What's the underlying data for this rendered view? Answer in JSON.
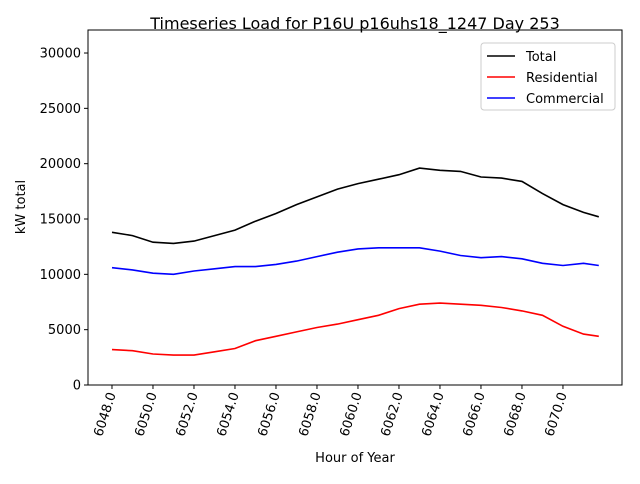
{
  "chart_data": {
    "type": "line",
    "title": "Timeseries Load for P16U p16uhs18_1247  Day 253",
    "xlabel": "Hour of Year",
    "ylabel": "kW total",
    "xlim": [
      6046.83,
      6072.88
    ],
    "ylim": [
      0,
      32080
    ],
    "xticks": [
      6048,
      6050,
      6052,
      6054,
      6056,
      6058,
      6060,
      6062,
      6064,
      6066,
      6068,
      6070
    ],
    "xtick_labels": [
      "6048.0",
      "6050.0",
      "6052.0",
      "6054.0",
      "6056.0",
      "6058.0",
      "6060.0",
      "6062.0",
      "6064.0",
      "6066.0",
      "6068.0",
      "6070.0"
    ],
    "yticks": [
      0,
      5000,
      10000,
      15000,
      20000,
      25000,
      30000
    ],
    "ytick_labels": [
      "0",
      "5000",
      "10000",
      "15000",
      "20000",
      "25000",
      "30000"
    ],
    "grid": false,
    "legend_position": "top-right",
    "x": [
      6048,
      6049,
      6050,
      6051,
      6052,
      6053,
      6054,
      6055,
      6056,
      6057,
      6058,
      6059,
      6060,
      6061,
      6062,
      6063,
      6064,
      6065,
      6066,
      6067,
      6068,
      6069,
      6070,
      6071,
      6071.75
    ],
    "series": [
      {
        "name": "Total",
        "color": "#000000",
        "values": [
          13800,
          13500,
          12900,
          12800,
          13000,
          13500,
          14000,
          14800,
          15500,
          16300,
          17000,
          17700,
          18200,
          18600,
          19000,
          19600,
          19400,
          19300,
          18800,
          18700,
          18400,
          17300,
          16300,
          15600,
          15200
        ]
      },
      {
        "name": "Residential",
        "color": "#ff0000",
        "values": [
          3200,
          3100,
          2800,
          2700,
          2700,
          3000,
          3300,
          4000,
          4400,
          4800,
          5200,
          5500,
          5900,
          6300,
          6900,
          7300,
          7400,
          7300,
          7200,
          7000,
          6700,
          6300,
          5300,
          4600,
          4400
        ]
      },
      {
        "name": "Commercial",
        "color": "#0000ff",
        "values": [
          10600,
          10400,
          10100,
          10000,
          10300,
          10500,
          10700,
          10700,
          10900,
          11200,
          11600,
          12000,
          12300,
          12400,
          12400,
          12400,
          12100,
          11700,
          11500,
          11600,
          11400,
          11000,
          10800,
          11000,
          10800
        ]
      }
    ]
  }
}
